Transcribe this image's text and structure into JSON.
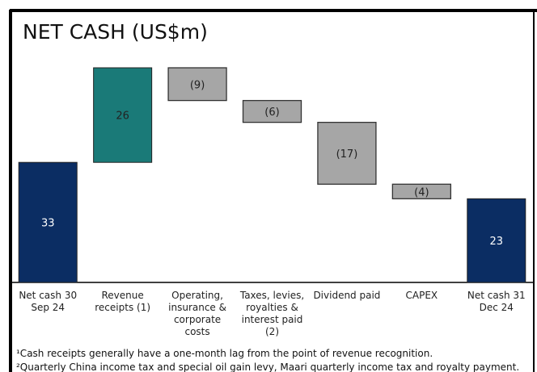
{
  "chart_data": {
    "type": "waterfall",
    "title": "NET CASH (US$m)",
    "categories": [
      "Net cash 30 Sep 24",
      "Revenue receipts (1)",
      "Operating, insurance & corporate costs",
      "Taxes, levies, royalties & interest paid (2)",
      "Dividend paid",
      "CAPEX",
      "Net cash 31 Dec 24"
    ],
    "values": [
      33,
      26,
      -9,
      -6,
      -17,
      -4,
      23
    ],
    "value_labels": [
      "33",
      "26",
      "(9)",
      "(6)",
      "(17)",
      "(4)",
      "23"
    ],
    "colors": [
      "#0b2d63",
      "#1a7a78",
      "#a6a6a6",
      "#a6a6a6",
      "#a6a6a6",
      "#a6a6a6",
      "#0b2d63"
    ],
    "footnotes": [
      "¹Cash receipts generally have a one-month lag from the point of revenue recognition.",
      "²Quarterly China income tax and special oil gain levy, Maari quarterly income tax and royalty payment."
    ]
  }
}
